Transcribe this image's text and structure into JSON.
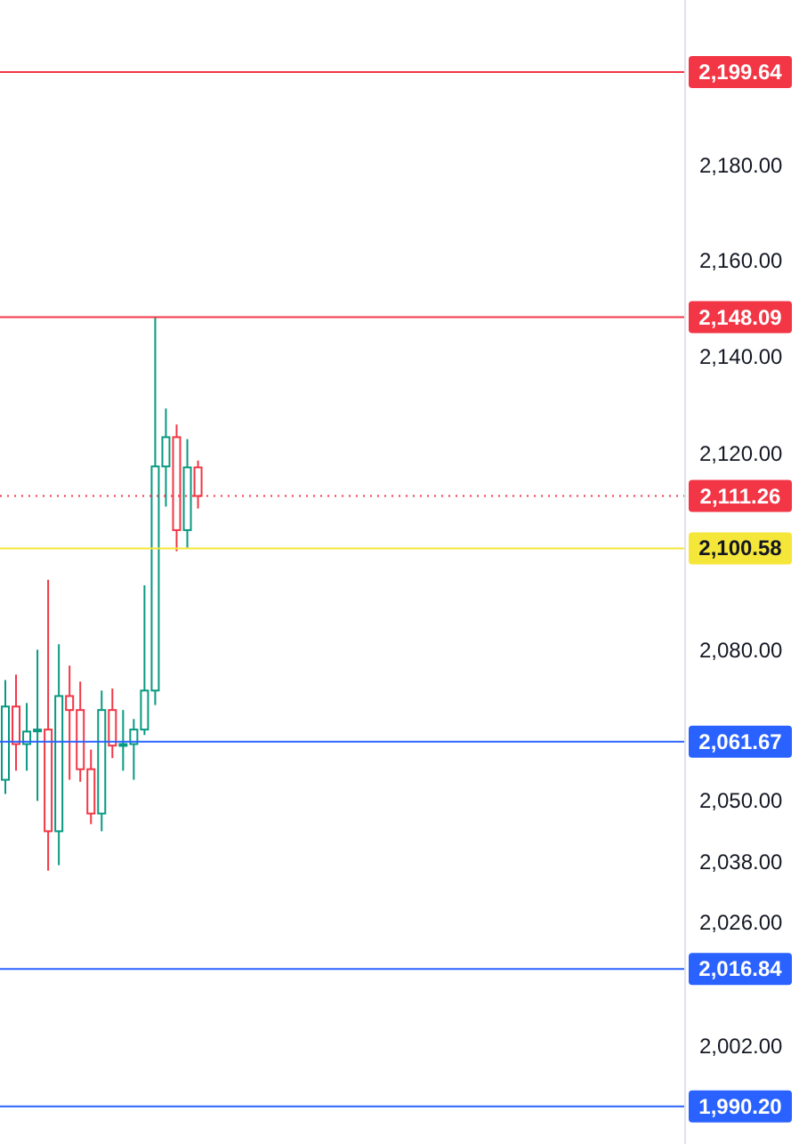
{
  "chart_data": {
    "type": "candlestick",
    "categories": [
      null,
      null,
      null,
      null,
      null,
      null,
      null,
      null,
      null,
      null,
      null,
      null,
      null,
      null,
      null,
      null,
      null,
      null,
      null,
      null,
      null,
      null,
      null,
      null,
      null,
      null,
      null,
      null,
      null,
      null,
      null,
      null,
      null,
      null,
      null,
      null,
      null,
      null,
      null,
      null,
      null,
      null,
      null,
      null,
      null,
      null,
      null,
      null,
      null,
      null,
      null,
      null,
      null,
      null,
      null,
      null,
      null,
      null,
      null,
      null,
      null,
      null,
      null,
      null
    ],
    "ohlc": [
      [
        2054.1,
        2074.0,
        2051.3,
        2068.7
      ],
      [
        2068.7,
        2075.1,
        2055.9,
        2061.2
      ],
      [
        2061.2,
        2069.4,
        2055.9,
        2063.7
      ],
      [
        2064.0,
        2080.1,
        2049.9,
        2064.1
      ],
      [
        2064.1,
        2094.2,
        2036.1,
        2043.9
      ],
      [
        2043.9,
        2081.2,
        2037.2,
        2070.8
      ],
      [
        2070.8,
        2076.9,
        2054.1,
        2068.0
      ],
      [
        2068.0,
        2073.7,
        2053.7,
        2056.2
      ],
      [
        2056.2,
        2060.1,
        2045.3,
        2047.4
      ],
      [
        2047.4,
        2071.9,
        2043.9,
        2068.0
      ],
      [
        2068.0,
        2072.3,
        2058.4,
        2060.9
      ],
      [
        2060.9,
        2068.0,
        2055.9,
        2061.2
      ],
      [
        2061.2,
        2066.2,
        2054.1,
        2064.1
      ],
      [
        2064.1,
        2093.1,
        2063.0,
        2071.9
      ],
      [
        2071.9,
        2148.09,
        2069.0,
        2117.3
      ],
      [
        2117.3,
        2129.2,
        2109.1,
        2123.3
      ],
      [
        2123.3,
        2125.9,
        2100.0,
        2104.3
      ],
      [
        2104.3,
        2122.9,
        2100.7,
        2117.1
      ],
      [
        2117.1,
        2118.5,
        2108.7,
        2111.26
      ],
      null,
      null,
      null,
      null,
      null,
      null,
      null,
      null,
      null,
      null,
      null,
      null,
      null,
      null,
      null,
      null,
      null,
      null,
      null,
      null,
      null,
      null,
      null,
      null,
      null,
      null,
      null,
      null,
      null,
      null,
      null,
      null,
      null,
      null,
      null,
      null,
      null,
      null,
      null,
      null,
      null,
      null,
      null,
      null,
      null
    ],
    "colors": [
      "#089981",
      "#f23645",
      "#089981",
      "#089981",
      "#f23645",
      "#089981",
      "#f23645",
      "#f23645",
      "#f23645",
      "#089981",
      "#f23645",
      "#089981",
      "#089981",
      "#089981",
      "#089981",
      "#089981",
      "#f23645",
      "#089981",
      "#f23645",
      null,
      null,
      null,
      null,
      null,
      null,
      null,
      null,
      null,
      null,
      null,
      null,
      null,
      null,
      null,
      null,
      null,
      null,
      null,
      null,
      null,
      null,
      null,
      null,
      null,
      null,
      null,
      null,
      null,
      null,
      null,
      null,
      null,
      null,
      null,
      null,
      null,
      null,
      null,
      null,
      null,
      null,
      null,
      null,
      null
    ],
    "log": "y",
    "ylim": [
      1983,
      2215
    ],
    "yticks": [
      {
        "value": 2180,
        "label": "2,180.00"
      },
      {
        "value": 2160,
        "label": "2,160.00"
      },
      {
        "value": 2140,
        "label": "2,140.00"
      },
      {
        "value": 2120,
        "label": "2,120.00"
      },
      {
        "value": 2080,
        "label": "2,080.00"
      },
      {
        "value": 2050,
        "label": "2,050.00"
      },
      {
        "value": 2038,
        "label": "2,038.00"
      },
      {
        "value": 2026,
        "label": "2,026.00"
      },
      {
        "value": 2002,
        "label": "2,002.00"
      }
    ],
    "ref_lines": [
      {
        "axis": "y",
        "value": 2199.64,
        "label": "2,199.64",
        "color": "#f23645",
        "line_style": "solid"
      },
      {
        "axis": "y",
        "value": 2148.09,
        "label": "2,148.09",
        "color": "#f23645",
        "line_style": "solid"
      },
      {
        "axis": "y",
        "value": 2111.26,
        "label": "2,111.26",
        "color": "#f23645",
        "line_style": "dotted"
      },
      {
        "axis": "y",
        "value": 2100.58,
        "label": "2,100.58",
        "color": "#f5e63a",
        "line_style": "solid"
      },
      {
        "axis": "y",
        "value": 2061.67,
        "label": "2,061.67",
        "color": "#2962ff",
        "line_style": "solid"
      },
      {
        "axis": "y",
        "value": 2016.84,
        "label": "2,016.84",
        "color": "#2962ff",
        "line_style": "solid"
      },
      {
        "axis": "y",
        "value": 1990.2,
        "label": "1,990.20",
        "color": "#2962ff",
        "line_style": "solid"
      }
    ],
    "tick_labels": "y",
    "grid": false,
    "legend": false
  }
}
